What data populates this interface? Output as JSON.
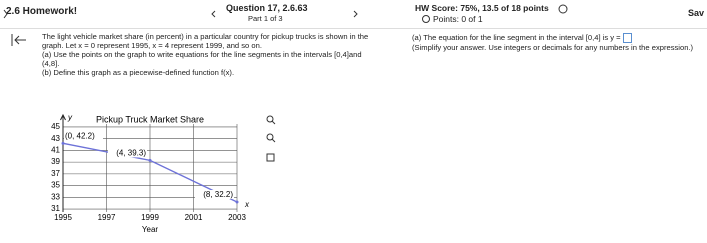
{
  "header": {
    "section": "2.6 Homework!",
    "question": "Question 17, 2.6.63",
    "part": "Part 1 of 3",
    "hw_score": "HW Score: 75%, 13.5 of 18 points",
    "points": "Points: 0 of 1",
    "save": "Sav"
  },
  "problem": {
    "intro": "The light vehicle market share (in percent) in a particular country for pickup trucks is shown in the graph. Let x = 0 represent 1995, x = 4 represent 1999, and so on.",
    "part_a": "(a) Use the points on the graph to write equations for the line segments in the intervals [0,4]and (4,8].",
    "part_b": "(b) Define this graph as a piecewise-defined function f(x)."
  },
  "answer": {
    "prompt": "(a) The equation for the line segment in the interval [0,4] is y =",
    "note": "(Simplify your answer. Use integers or decimals for any numbers in the expression.)"
  },
  "chart_data": {
    "type": "line",
    "title": "Pickup Truck Market Share",
    "x_label": "Year",
    "x_axis_symbol": "x",
    "y_axis_symbol": "y",
    "x": [
      1995,
      1999,
      2003
    ],
    "values": [
      42.2,
      39.3,
      32.2
    ],
    "value_labels": [
      "(0, 42.2)",
      "(4, 39.3)",
      "(8, 32.2)"
    ],
    "xlim": [
      1995,
      2003
    ],
    "xticks": [
      1995,
      1997,
      1999,
      2001,
      2003
    ],
    "ylim": [
      30.5,
      45.5
    ],
    "yticks": [
      31,
      33,
      35,
      37,
      39,
      41,
      43,
      45
    ],
    "grid": true,
    "color": "#6d72d8"
  }
}
